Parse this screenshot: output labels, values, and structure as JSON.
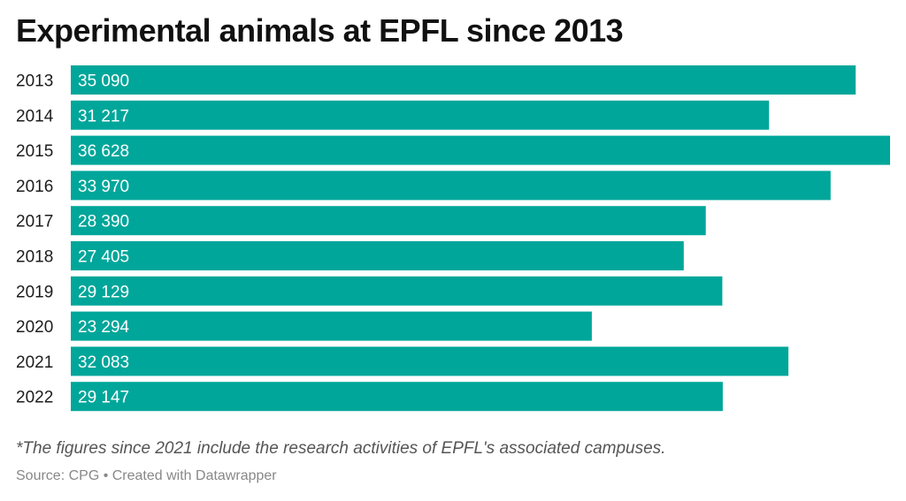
{
  "title": "Experimental animals at EPFL since 2013",
  "note": "*The figures since 2021 include the research activities of EPFL's associated campuses.",
  "source": "Source: CPG • Created with Datawrapper",
  "colors": {
    "bar": "#00a69a",
    "bar_label": "#ffffff",
    "category_label": "#1d1d1d"
  },
  "chart_data": {
    "type": "bar",
    "orientation": "horizontal",
    "title": "Experimental animals at EPFL since 2013",
    "xlabel": "",
    "ylabel": "",
    "categories": [
      "2013",
      "2014",
      "2015",
      "2016",
      "2017",
      "2018",
      "2019",
      "2020",
      "2021",
      "2022"
    ],
    "values": [
      35090,
      31217,
      36628,
      33970,
      28390,
      27405,
      29129,
      23294,
      32083,
      29147
    ],
    "value_labels": [
      "35 090",
      "31 217",
      "36 628",
      "33 970",
      "28 390",
      "27 405",
      "29 129",
      "23 294",
      "32 083",
      "29 147"
    ],
    "xlim": [
      0,
      36628
    ],
    "grid": false,
    "legend": "none"
  }
}
